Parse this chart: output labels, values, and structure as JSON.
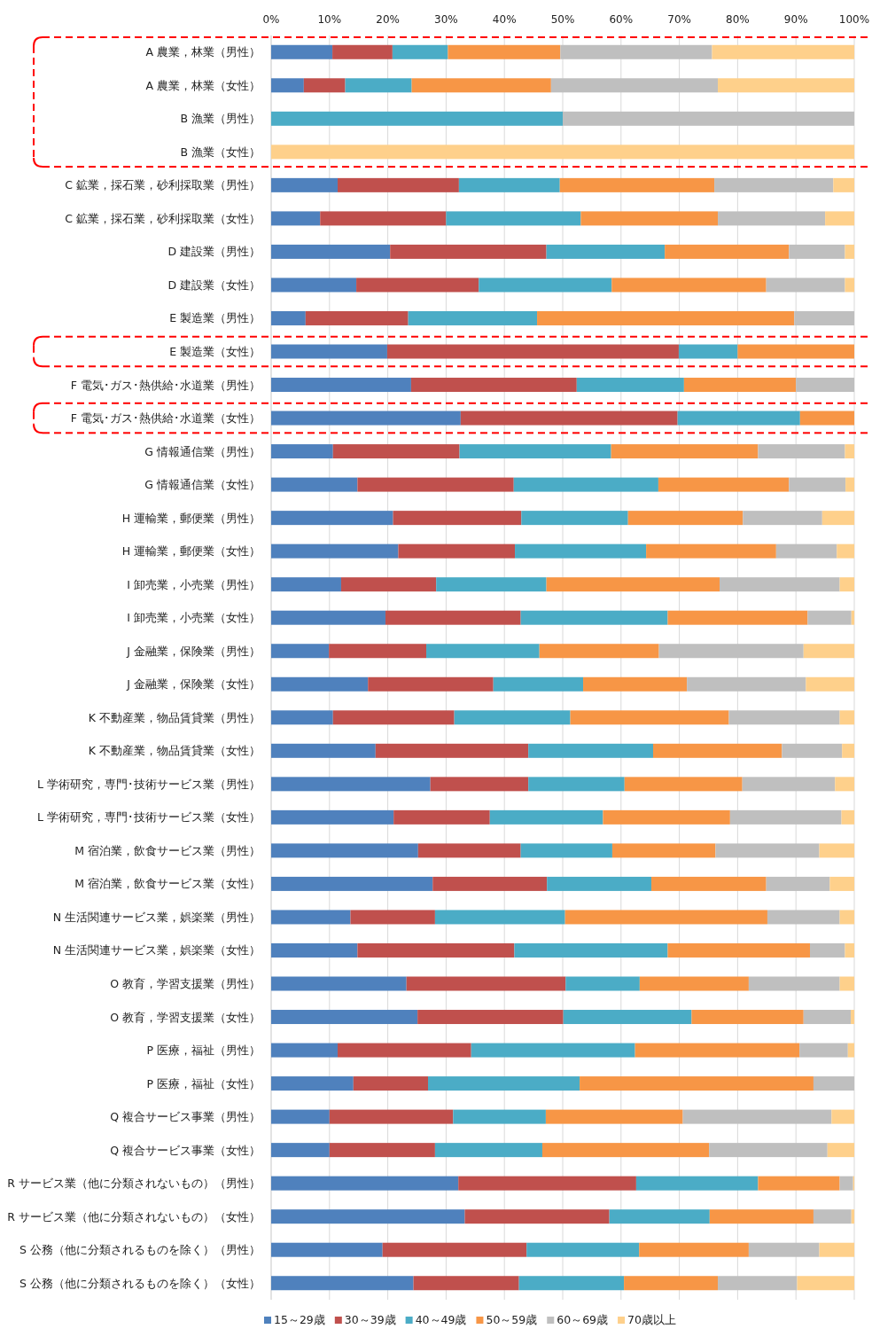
{
  "chart_data": {
    "type": "bar",
    "orientation": "horizontal",
    "stacked": true,
    "categories": [
      "A 農業，林業（男性）",
      "A 農業，林業（女性）",
      "B 漁業（男性）",
      "B 漁業（女性）",
      "C 鉱業，採石業，砂利採取業（男性）",
      "C 鉱業，採石業，砂利採取業（女性）",
      "D 建設業（男性）",
      "D 建設業（女性）",
      "E 製造業（男性）",
      "E 製造業（女性）",
      "F 電気･ガス･熱供給･水道業（男性）",
      "F 電気･ガス･熱供給･水道業（女性）",
      "G 情報通信業（男性）",
      "G 情報通信業（女性）",
      "H 運輸業，郵便業（男性）",
      "H 運輸業，郵便業（女性）",
      "I 卸売業，小売業（男性）",
      "I 卸売業，小売業（女性）",
      "J 金融業，保険業（男性）",
      "J 金融業，保険業（女性）",
      "K 不動産業，物品賃貸業（男性）",
      "K 不動産業，物品賃貸業（女性）",
      "L 学術研究，専門･技術サービス業（男性）",
      "L 学術研究，専門･技術サービス業（女性）",
      "M 宿泊業，飲食サービス業（男性）",
      "M 宿泊業，飲食サービス業（女性）",
      "N 生活関連サービス業，娯楽業（男性）",
      "N 生活関連サービス業，娯楽業（女性）",
      "O 教育，学習支援業（男性）",
      "O 教育，学習支援業（女性）",
      "P 医療，福祉（男性）",
      "P 医療，福祉（女性）",
      "Q 複合サービス事業（男性）",
      "Q 複合サービス事業（女性）",
      "R サービス業（他に分類されないもの）（男性）",
      "R サービス業（他に分類されないもの）（女性）",
      "S 公務（他に分類されるものを除く）（男性）",
      "S 公務（他に分類されるものを除く）（女性）"
    ],
    "series": [
      {
        "name": "15～29歳",
        "color": "#4f81bd",
        "values": [
          10.5,
          5.6,
          0,
          0,
          11.4,
          8.4,
          20.4,
          14.6,
          5.9,
          19.9,
          24.0,
          32.5,
          10.6,
          14.8,
          20.9,
          21.8,
          12.0,
          19.6,
          9.9,
          16.6,
          10.6,
          17.9,
          27.3,
          21.0,
          25.2,
          27.7,
          13.6,
          14.8,
          23.2,
          25.1,
          11.4,
          14.1,
          10.0,
          10.0,
          32.1,
          33.2,
          19.1,
          24.4
        ]
      },
      {
        "name": "30～39歳",
        "color": "#c0504d",
        "values": [
          10.3,
          7.1,
          0,
          0,
          20.8,
          21.6,
          26.8,
          21.0,
          17.6,
          50.0,
          28.4,
          37.2,
          21.7,
          26.8,
          22.0,
          20.0,
          16.3,
          23.2,
          16.7,
          21.5,
          20.8,
          26.2,
          16.8,
          16.5,
          17.6,
          19.6,
          14.5,
          26.9,
          27.3,
          25.0,
          22.9,
          12.8,
          21.2,
          18.1,
          30.5,
          24.8,
          24.7,
          18.1
        ]
      },
      {
        "name": "40～49歳",
        "color": "#4bacc6",
        "values": [
          9.5,
          11.4,
          50,
          0,
          17.3,
          23.1,
          20.3,
          22.8,
          22.1,
          10.1,
          18.4,
          21.0,
          26.0,
          24.8,
          18.3,
          22.5,
          18.9,
          25.2,
          19.4,
          15.4,
          19.9,
          21.4,
          16.5,
          19.4,
          15.7,
          17.9,
          22.3,
          26.3,
          12.7,
          22.0,
          28.1,
          26.0,
          15.9,
          18.4,
          20.9,
          17.2,
          19.3,
          18.0
        ]
      },
      {
        "name": "50～59歳",
        "color": "#f79646",
        "values": [
          19.3,
          23.9,
          0,
          0,
          26.5,
          23.5,
          21.3,
          26.5,
          44.1,
          20.0,
          19.2,
          9.3,
          25.2,
          22.4,
          19.7,
          22.3,
          29.7,
          24.0,
          20.5,
          17.8,
          27.2,
          22.1,
          20.2,
          21.8,
          17.7,
          19.7,
          34.7,
          24.4,
          18.7,
          19.2,
          28.2,
          40.1,
          23.5,
          28.6,
          14.0,
          17.8,
          18.8,
          16.1
        ]
      },
      {
        "name": "60～69歳",
        "color": "#bfbfbf",
        "values": [
          26.0,
          28.6,
          50,
          0,
          20.4,
          18.4,
          9.6,
          13.5,
          10.3,
          0,
          10.0,
          0,
          14.9,
          9.7,
          13.6,
          10.4,
          20.6,
          7.5,
          24.8,
          20.4,
          19.0,
          10.3,
          15.9,
          19.1,
          17.8,
          10.9,
          12.4,
          6.0,
          15.6,
          8.1,
          8.3,
          7.0,
          25.5,
          20.3,
          2.3,
          6.5,
          12.1,
          13.6
        ]
      },
      {
        "name": "70歳以上",
        "color": "#fed08b",
        "values": [
          24.4,
          23.4,
          0,
          100,
          3.6,
          5.0,
          1.6,
          1.6,
          0,
          0,
          0,
          0,
          1.6,
          1.5,
          5.5,
          3.0,
          2.5,
          0.5,
          8.7,
          8.3,
          2.5,
          2.1,
          3.3,
          2.2,
          6.0,
          4.2,
          2.5,
          1.6,
          2.5,
          0.6,
          1.1,
          0,
          3.9,
          4.6,
          0.2,
          0.5,
          6.0,
          9.8
        ]
      }
    ],
    "xlim": [
      0,
      100
    ],
    "xticks": [
      {
        "value": 0,
        "label": "0%"
      },
      {
        "value": 10,
        "label": "10%"
      },
      {
        "value": 20,
        "label": "20%"
      },
      {
        "value": 30,
        "label": "30%"
      },
      {
        "value": 40,
        "label": "40%"
      },
      {
        "value": 50,
        "label": "50%"
      },
      {
        "value": 60,
        "label": "60%"
      },
      {
        "value": 70,
        "label": "70%"
      },
      {
        "value": 80,
        "label": "80%"
      },
      {
        "value": 90,
        "label": "90%"
      },
      {
        "value": 100,
        "label": "100%"
      }
    ],
    "grid": "x",
    "legend": "bottom"
  }
}
